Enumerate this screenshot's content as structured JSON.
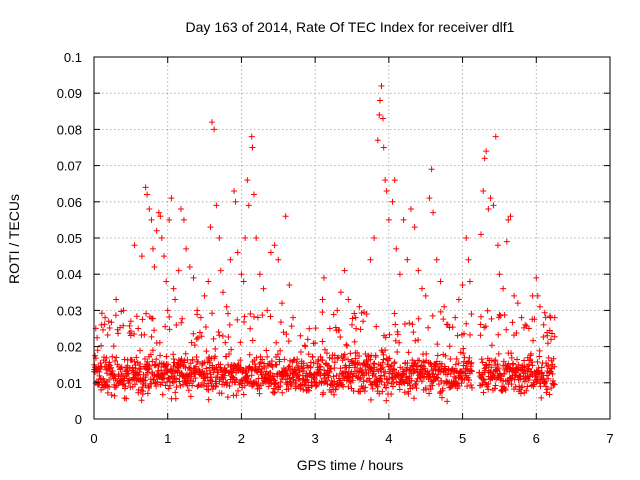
{
  "chart_data": {
    "type": "scatter",
    "title": "Day 163 of 2014, Rate Of TEC Index for receiver dlf1",
    "xlabel": "GPS time / hours",
    "ylabel": "ROTI / TECUs",
    "xlim": [
      0,
      7
    ],
    "ylim": [
      0,
      0.1
    ],
    "xticks": [
      "0",
      "1",
      "2",
      "3",
      "4",
      "5",
      "6",
      "7"
    ],
    "yticks": [
      "0",
      "0.01",
      "0.02",
      "0.03",
      "0.04",
      "0.05",
      "0.06",
      "0.07",
      "0.08",
      "0.09",
      "0.1"
    ],
    "grid": true,
    "marker": "+",
    "color": "#ff0000",
    "data_extent_hours": [
      0.0,
      6.25
    ],
    "baseline_band": [
      0.005,
      0.02
    ],
    "series": [
      {
        "name": "ROTI",
        "points": [
          [
            0.05,
            0.019
          ],
          [
            0.1,
            0.026
          ],
          [
            0.15,
            0.028
          ],
          [
            0.2,
            0.027
          ],
          [
            0.3,
            0.033
          ],
          [
            0.4,
            0.03
          ],
          [
            0.5,
            0.027
          ],
          [
            0.55,
            0.048
          ],
          [
            0.6,
            0.025
          ],
          [
            0.65,
            0.045
          ],
          [
            0.7,
            0.064
          ],
          [
            0.72,
            0.062
          ],
          [
            0.75,
            0.058
          ],
          [
            0.78,
            0.055
          ],
          [
            0.8,
            0.047
          ],
          [
            0.82,
            0.042
          ],
          [
            0.85,
            0.052
          ],
          [
            0.88,
            0.057
          ],
          [
            0.9,
            0.056
          ],
          [
            0.92,
            0.05
          ],
          [
            0.95,
            0.045
          ],
          [
            0.98,
            0.038
          ],
          [
            1.0,
            0.03
          ],
          [
            1.02,
            0.055
          ],
          [
            1.05,
            0.061
          ],
          [
            1.08,
            0.036
          ],
          [
            1.1,
            0.033
          ],
          [
            1.15,
            0.041
          ],
          [
            1.18,
            0.058
          ],
          [
            1.22,
            0.055
          ],
          [
            1.25,
            0.047
          ],
          [
            1.3,
            0.042
          ],
          [
            1.35,
            0.039
          ],
          [
            1.4,
            0.03
          ],
          [
            1.45,
            0.028
          ],
          [
            1.5,
            0.034
          ],
          [
            1.55,
            0.038
          ],
          [
            1.58,
            0.053
          ],
          [
            1.6,
            0.082
          ],
          [
            1.63,
            0.08
          ],
          [
            1.66,
            0.059
          ],
          [
            1.7,
            0.05
          ],
          [
            1.72,
            0.041
          ],
          [
            1.75,
            0.035
          ],
          [
            1.8,
            0.031
          ],
          [
            1.85,
            0.044
          ],
          [
            1.9,
            0.063
          ],
          [
            1.92,
            0.06
          ],
          [
            1.95,
            0.046
          ],
          [
            2.0,
            0.04
          ],
          [
            2.03,
            0.038
          ],
          [
            2.05,
            0.05
          ],
          [
            2.08,
            0.066
          ],
          [
            2.1,
            0.059
          ],
          [
            2.14,
            0.078
          ],
          [
            2.15,
            0.075
          ],
          [
            2.17,
            0.062
          ],
          [
            2.2,
            0.05
          ],
          [
            2.25,
            0.04
          ],
          [
            2.3,
            0.036
          ],
          [
            2.35,
            0.03
          ],
          [
            2.4,
            0.046
          ],
          [
            2.45,
            0.048
          ],
          [
            2.5,
            0.044
          ],
          [
            2.55,
            0.032
          ],
          [
            2.6,
            0.056
          ],
          [
            2.65,
            0.037
          ],
          [
            2.7,
            0.028
          ],
          [
            2.8,
            0.023
          ],
          [
            2.9,
            0.022
          ],
          [
            3.0,
            0.021
          ],
          [
            3.1,
            0.033
          ],
          [
            3.12,
            0.039
          ],
          [
            3.2,
            0.025
          ],
          [
            3.3,
            0.03
          ],
          [
            3.35,
            0.035
          ],
          [
            3.4,
            0.041
          ],
          [
            3.45,
            0.033
          ],
          [
            3.5,
            0.026
          ],
          [
            3.55,
            0.028
          ],
          [
            3.6,
            0.031
          ],
          [
            3.65,
            0.027
          ],
          [
            3.7,
            0.029
          ],
          [
            3.75,
            0.044
          ],
          [
            3.8,
            0.05
          ],
          [
            3.85,
            0.077
          ],
          [
            3.87,
            0.084
          ],
          [
            3.88,
            0.088
          ],
          [
            3.9,
            0.092
          ],
          [
            3.92,
            0.083
          ],
          [
            3.93,
            0.075
          ],
          [
            3.95,
            0.066
          ],
          [
            3.97,
            0.063
          ],
          [
            4.0,
            0.055
          ],
          [
            4.05,
            0.06
          ],
          [
            4.08,
            0.066
          ],
          [
            4.1,
            0.047
          ],
          [
            4.15,
            0.04
          ],
          [
            4.2,
            0.055
          ],
          [
            4.25,
            0.044
          ],
          [
            4.3,
            0.058
          ],
          [
            4.35,
            0.053
          ],
          [
            4.4,
            0.041
          ],
          [
            4.45,
            0.036
          ],
          [
            4.5,
            0.034
          ],
          [
            4.55,
            0.061
          ],
          [
            4.58,
            0.069
          ],
          [
            4.6,
            0.057
          ],
          [
            4.65,
            0.044
          ],
          [
            4.7,
            0.038
          ],
          [
            4.75,
            0.031
          ],
          [
            4.8,
            0.026
          ],
          [
            4.9,
            0.028
          ],
          [
            4.95,
            0.033
          ],
          [
            5.0,
            0.037
          ],
          [
            5.05,
            0.05
          ],
          [
            5.08,
            0.044
          ],
          [
            5.1,
            0.038
          ],
          [
            5.12,
            0.029
          ],
          [
            5.25,
            0.051
          ],
          [
            5.28,
            0.063
          ],
          [
            5.3,
            0.072
          ],
          [
            5.32,
            0.074
          ],
          [
            5.35,
            0.058
          ],
          [
            5.38,
            0.061
          ],
          [
            5.42,
            0.059
          ],
          [
            5.45,
            0.078
          ],
          [
            5.48,
            0.048
          ],
          [
            5.5,
            0.04
          ],
          [
            5.55,
            0.036
          ],
          [
            5.6,
            0.049
          ],
          [
            5.62,
            0.055
          ],
          [
            5.65,
            0.056
          ],
          [
            5.7,
            0.034
          ],
          [
            5.75,
            0.032
          ],
          [
            5.8,
            0.028
          ],
          [
            5.85,
            0.026
          ],
          [
            5.9,
            0.025
          ],
          [
            5.95,
            0.034
          ],
          [
            6.0,
            0.039
          ],
          [
            6.02,
            0.034
          ],
          [
            6.05,
            0.031
          ],
          [
            6.1,
            0.026
          ],
          [
            6.15,
            0.023
          ],
          [
            6.2,
            0.022
          ],
          [
            6.25,
            0.028
          ]
        ]
      }
    ]
  }
}
